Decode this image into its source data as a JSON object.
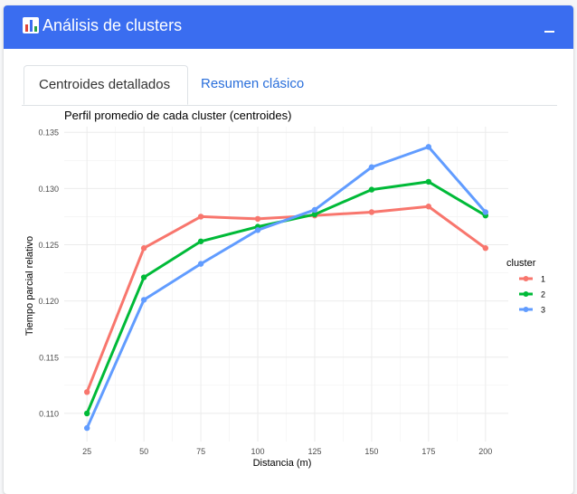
{
  "header": {
    "title": "Análisis de clusters",
    "icon": "bar-chart-icon",
    "collapse_icon": "minus-icon",
    "color": "#3a6df0"
  },
  "tabs": [
    {
      "label": "Centroides detallados",
      "active": true
    },
    {
      "label": "Resumen clásico",
      "active": false
    }
  ],
  "chart_data": {
    "type": "line",
    "title": "Perfil promedio de cada cluster (centroides)",
    "xlabel": "Distancia (m)",
    "ylabel": "Tiempo parcial relativo",
    "x": [
      25,
      50,
      75,
      100,
      125,
      150,
      175,
      200
    ],
    "ylim": [
      0.1075,
      0.1355
    ],
    "yticks": [
      "0.110",
      "0.115",
      "0.120",
      "0.125",
      "0.130",
      "0.135"
    ],
    "grid": true,
    "legend_title": "cluster",
    "legend_position": "right",
    "series": [
      {
        "name": "1",
        "color": "#f8766d",
        "values": [
          0.1119,
          0.1247,
          0.1275,
          0.1273,
          0.1276,
          0.1279,
          0.1284,
          0.1247
        ]
      },
      {
        "name": "2",
        "color": "#00ba38",
        "values": [
          0.11,
          0.1221,
          0.1253,
          0.1266,
          0.1277,
          0.1299,
          0.1306,
          0.1276
        ]
      },
      {
        "name": "3",
        "color": "#619cff",
        "values": [
          0.1087,
          0.1201,
          0.1233,
          0.1263,
          0.1281,
          0.1319,
          0.1337,
          0.1279
        ]
      }
    ]
  }
}
